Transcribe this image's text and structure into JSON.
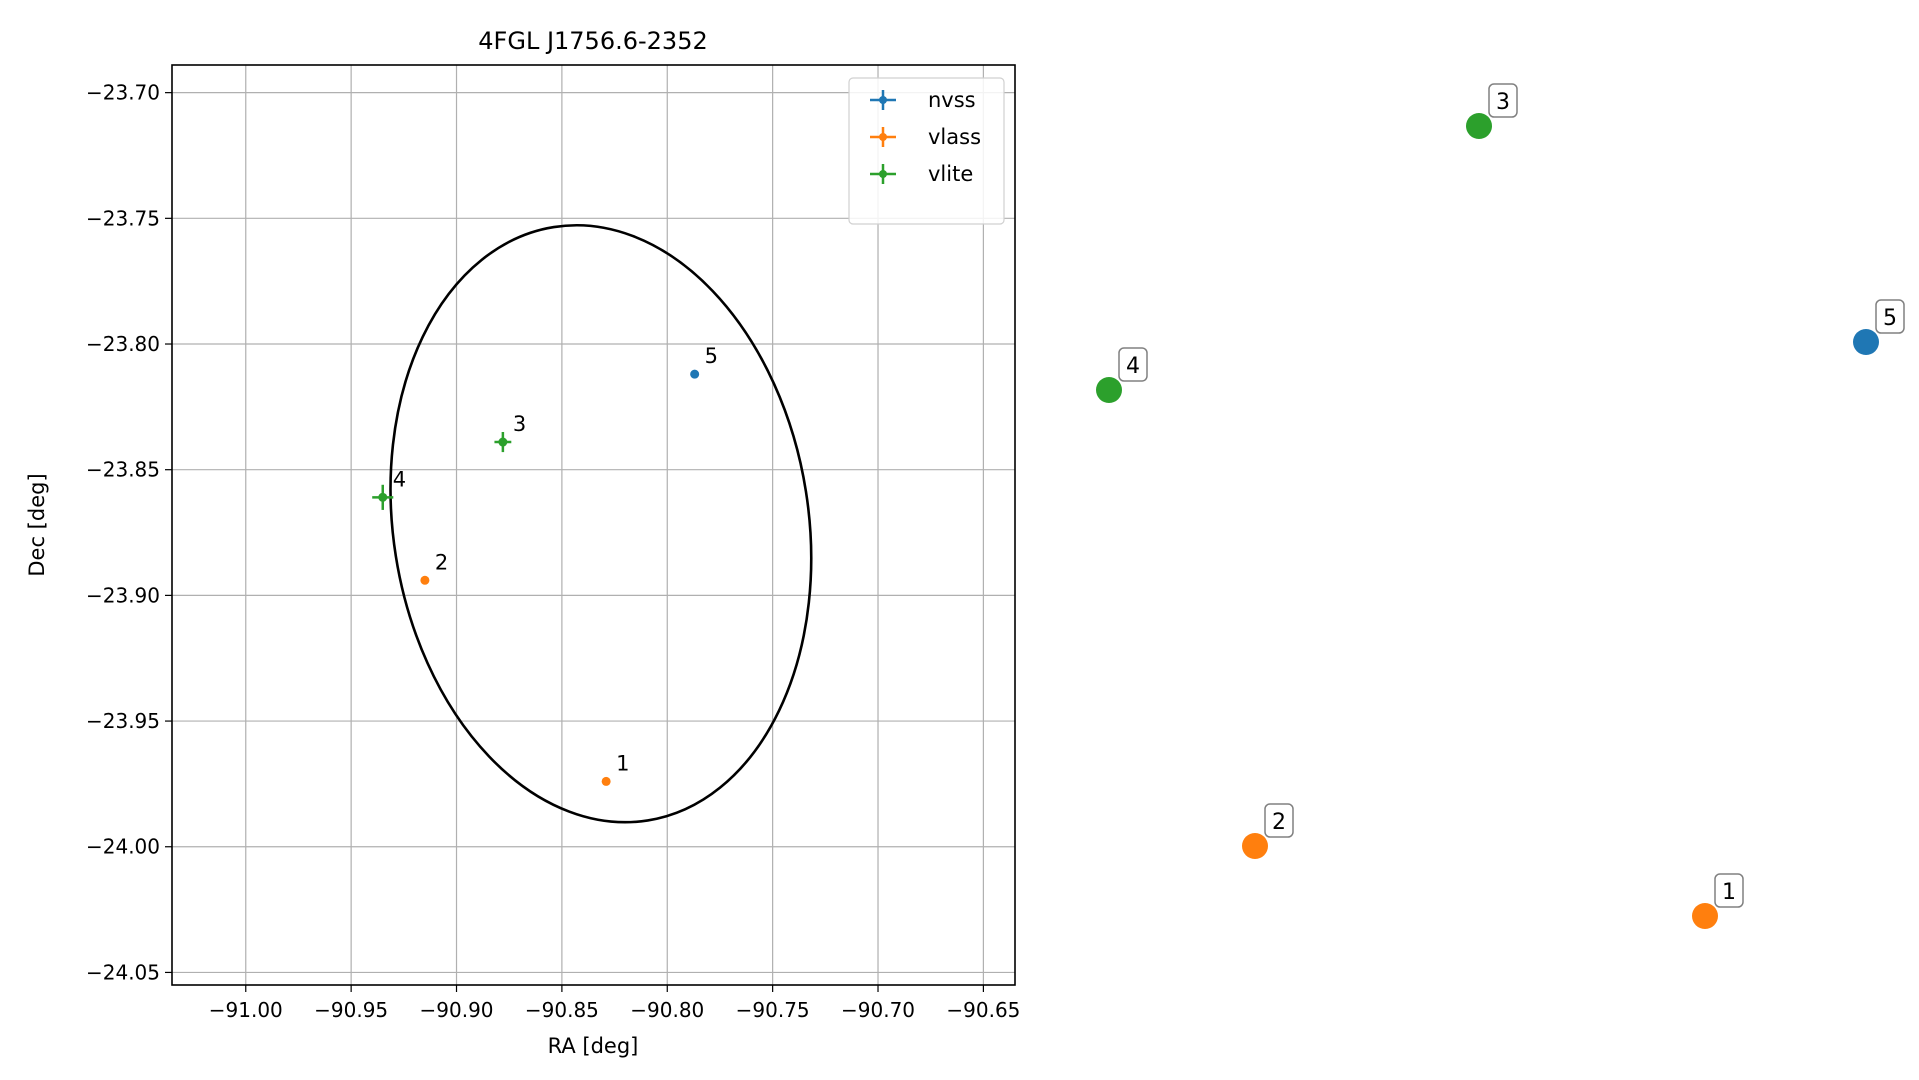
{
  "chart_data": {
    "type": "scatter",
    "title": "4FGL J1756.6-2352",
    "xlabel": "RA [deg]",
    "ylabel": "Dec [deg]",
    "xlim": [
      -91.035,
      -90.635
    ],
    "ylim": [
      -24.055,
      -23.689
    ],
    "xticks": [
      -91.0,
      -90.95,
      -90.9,
      -90.85,
      -90.8,
      -90.75,
      -90.7,
      -90.65
    ],
    "xtick_labels": [
      "−91.00",
      "−90.95",
      "−90.90",
      "−90.85",
      "−90.80",
      "−90.75",
      "−90.70",
      "−90.65"
    ],
    "yticks": [
      -23.7,
      -23.75,
      -23.8,
      -23.85,
      -23.9,
      -23.95,
      -24.0,
      -24.05
    ],
    "ytick_labels": [
      "−23.70",
      "−23.75",
      "−23.80",
      "−23.85",
      "−23.90",
      "−23.95",
      "−24.00",
      "−24.05"
    ],
    "grid": true,
    "legend_position": "top-right",
    "series": [
      {
        "name": "nvss",
        "color": "#1f77b4",
        "points": [
          {
            "label": "5",
            "ra": -90.787,
            "dec": -23.812,
            "ra_err": 0.0,
            "dec_err": 0.0
          }
        ]
      },
      {
        "name": "vlass",
        "color": "#ff7f0e",
        "points": [
          {
            "label": "1",
            "ra": -90.829,
            "dec": -23.974,
            "ra_err": 0.0,
            "dec_err": 0.0
          },
          {
            "label": "2",
            "ra": -90.915,
            "dec": -23.894,
            "ra_err": 0.0,
            "dec_err": 0.0
          }
        ]
      },
      {
        "name": "vlite",
        "color": "#2ca02c",
        "points": [
          {
            "label": "3",
            "ra": -90.878,
            "dec": -23.839,
            "ra_err": 0.004,
            "dec_err": 0.004
          },
          {
            "label": "4",
            "ra": -90.935,
            "dec": -23.861,
            "ra_err": 0.005,
            "dec_err": 0.005
          }
        ]
      }
    ],
    "ellipse": {
      "center_ra": -90.8315,
      "center_dec": -23.8715,
      "half_width_ra": 0.0985,
      "half_height_dec": 0.1195,
      "tilt_deg": -9,
      "color": "#000000"
    },
    "side_panel": {
      "markers": [
        {
          "label": "1",
          "series": "vlass",
          "color": "#ff7f0e"
        },
        {
          "label": "2",
          "series": "vlass",
          "color": "#ff7f0e"
        },
        {
          "label": "3",
          "series": "vlite",
          "color": "#2ca02c"
        },
        {
          "label": "4",
          "series": "vlite",
          "color": "#2ca02c"
        },
        {
          "label": "5",
          "series": "nvss",
          "color": "#1f77b4"
        }
      ]
    }
  }
}
